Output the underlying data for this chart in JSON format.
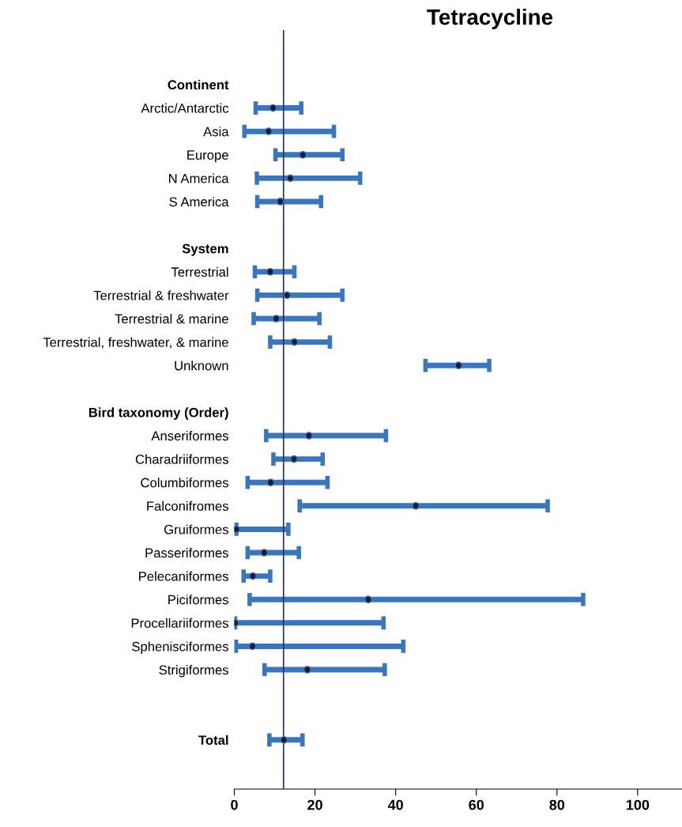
{
  "chart_data": {
    "type": "scatter",
    "title": "Tetracycline",
    "categories": [
      "Continent",
      "Arctic/Antarctic",
      "Asia",
      "Europe",
      "N America",
      "S America",
      null,
      "System",
      "Terrestrial",
      "Terrestrial & freshwater",
      "Terrestrial & marine",
      "Terrestrial, freshwater, & marine",
      "Unknown",
      null,
      "Bird taxonomy (Order)",
      "Anseriformes",
      "Charadriiformes",
      "Columbiformes",
      "Falconifromes",
      "Gruiformes",
      "Passeriformes",
      "Pelecaniformes",
      "Piciformes",
      "Procellariiformes",
      "Sphenisciformes",
      "Strigiformes",
      null,
      null,
      "Total"
    ],
    "orientation": "horizontal",
    "series": [
      {
        "color": "#3a76c0",
        "values": [
          null,
          9.6,
          8.5,
          17.0,
          13.9,
          11.4,
          null,
          null,
          8.9,
          13.1,
          10.4,
          14.9,
          55.6,
          null,
          null,
          18.5,
          14.8,
          9.0,
          45.0,
          0.5,
          7.4,
          4.6,
          33.2,
          0.2,
          4.5,
          18.1,
          null,
          null,
          12.3
        ],
        "errors": [
          null,
          [
            5.3,
            16.6
          ],
          [
            2.5,
            24.7
          ],
          [
            10.2,
            26.8
          ],
          [
            5.6,
            31.2
          ],
          [
            5.7,
            21.5
          ],
          null,
          null,
          [
            5.1,
            14.9
          ],
          [
            5.7,
            26.8
          ],
          [
            4.8,
            21.1
          ],
          [
            8.9,
            23.7
          ],
          [
            47.4,
            63.2
          ],
          null,
          null,
          [
            7.9,
            37.6
          ],
          [
            9.7,
            21.9
          ],
          [
            3.3,
            23.1
          ],
          [
            16.2,
            77.7
          ],
          [
            0.5,
            13.4
          ],
          [
            3.3,
            16.0
          ],
          [
            2.3,
            8.9
          ],
          [
            3.8,
            86.5
          ],
          [
            0.2,
            37.0
          ],
          [
            0.4,
            41.9
          ],
          [
            7.5,
            37.3
          ],
          null,
          null,
          [
            8.7,
            16.9
          ]
        ]
      }
    ],
    "xlim": [
      0,
      111
    ],
    "xticks": [
      0,
      20,
      40,
      60,
      80,
      100
    ],
    "ref_lines": [
      {
        "axis": "x",
        "value": 12.2,
        "color": "#2a2f5c"
      }
    ],
    "marker": "circle",
    "grid": false
  }
}
